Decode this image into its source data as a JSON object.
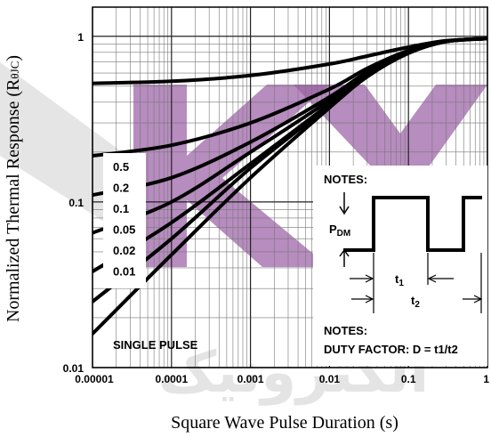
{
  "chart_data": {
    "type": "line",
    "xlabel": "Square Wave Pulse Duration (s)",
    "ylabel": "Normalized Thermal Response (R",
    "ylabel_sub": "θJC",
    "ylabel_close": ")",
    "x_scale": "log",
    "y_scale": "log",
    "xlim": [
      1e-05,
      1
    ],
    "ylim": [
      0.01,
      1.5
    ],
    "grid": true,
    "x_ticks": [
      "0.00001",
      "0.0001",
      "0.001",
      "0.01",
      "0.1",
      "1"
    ],
    "y_ticks": [
      "0.01",
      "0.1",
      "1"
    ],
    "legend_labels": [
      "0.5",
      "0.2",
      "0.1",
      "0.05",
      "0.02",
      "0.01"
    ],
    "series": [
      {
        "name": "0.5",
        "x": [
          1e-05,
          0.0001,
          0.001,
          0.01,
          0.03,
          0.1,
          0.3,
          1
        ],
        "y": [
          0.52,
          0.535,
          0.58,
          0.68,
          0.76,
          0.86,
          0.94,
          0.97
        ]
      },
      {
        "name": "0.2",
        "x": [
          1e-05,
          0.0001,
          0.001,
          0.01,
          0.03,
          0.1,
          0.3,
          1
        ],
        "y": [
          0.19,
          0.22,
          0.3,
          0.48,
          0.64,
          0.82,
          0.93,
          0.97
        ]
      },
      {
        "name": "0.1",
        "x": [
          1e-05,
          0.0001,
          0.001,
          0.01,
          0.03,
          0.1,
          0.3,
          1
        ],
        "y": [
          0.11,
          0.14,
          0.23,
          0.43,
          0.61,
          0.81,
          0.93,
          0.97
        ]
      },
      {
        "name": "0.05",
        "x": [
          1e-05,
          0.0001,
          0.001,
          0.01,
          0.03,
          0.1,
          0.3,
          1
        ],
        "y": [
          0.065,
          0.1,
          0.2,
          0.41,
          0.6,
          0.8,
          0.93,
          0.97
        ]
      },
      {
        "name": "0.02",
        "x": [
          1e-05,
          0.0001,
          0.001,
          0.01,
          0.03,
          0.1,
          0.3,
          1
        ],
        "y": [
          0.038,
          0.075,
          0.17,
          0.39,
          0.59,
          0.8,
          0.93,
          0.97
        ]
      },
      {
        "name": "0.01",
        "x": [
          1e-05,
          0.0001,
          0.001,
          0.01,
          0.03,
          0.1,
          0.3,
          1
        ],
        "y": [
          0.025,
          0.06,
          0.16,
          0.38,
          0.58,
          0.8,
          0.93,
          0.97
        ]
      },
      {
        "name": "SINGLE PULSE",
        "x": [
          1e-05,
          0.0001,
          0.001,
          0.01,
          0.03,
          0.1,
          0.3,
          1
        ],
        "y": [
          0.016,
          0.048,
          0.14,
          0.37,
          0.57,
          0.79,
          0.93,
          0.97
        ]
      }
    ],
    "single_pulse_label": "SINGLE PULSE",
    "notes": {
      "header": "NOTES:",
      "duty_factor": "DUTY FACTOR: D = t1/t2",
      "pdm_main": "P",
      "pdm_sub": "DM",
      "t1_main": "t",
      "t1_sub": "1",
      "t2_main": "t",
      "t2_sub": "2"
    }
  },
  "watermark": {
    "text": "KY",
    "arabic_text": "الکترونیک",
    "colors": {
      "purple": "#9b5fa6",
      "gray": "#d3d3d3"
    }
  }
}
